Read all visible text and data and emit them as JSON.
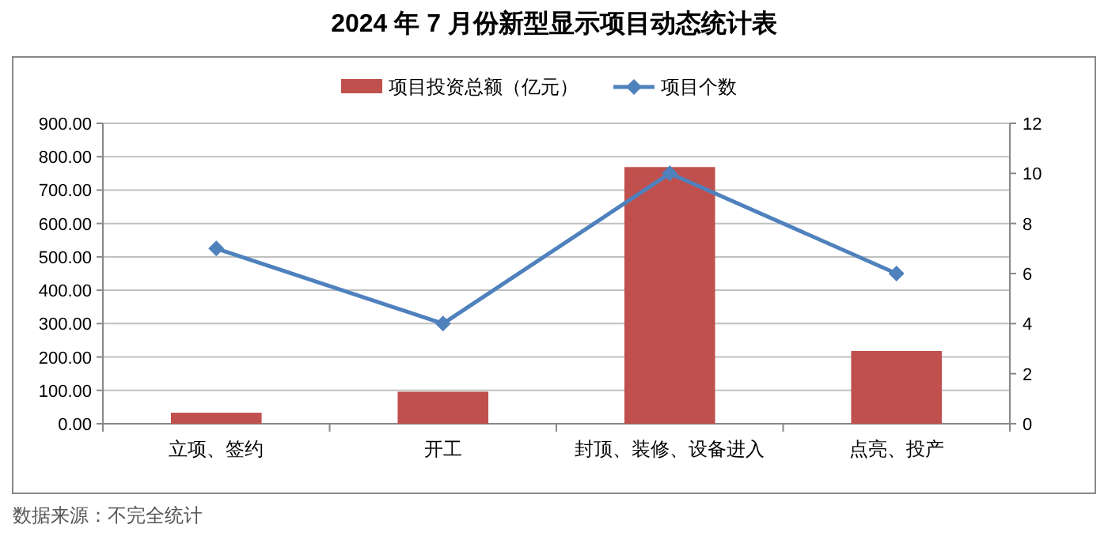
{
  "chart_data": {
    "type": "bar",
    "title": "2024 年 7 月份新型显示项目动态统计表",
    "categories": [
      "立项、签约",
      "开工",
      "封顶、装修、设备进入",
      "点亮、投产"
    ],
    "series": [
      {
        "name": "项目投资总额（亿元）",
        "color": "#c0504d",
        "values": [
          33,
          96,
          769,
          218
        ]
      },
      {
        "name": "项目个数",
        "type": "line",
        "axis": "y2",
        "color": "#4f81bd",
        "marker": "diamond",
        "values": [
          7,
          4,
          10,
          6
        ]
      }
    ],
    "ylim": [
      0,
      900
    ],
    "yticks": [
      {
        "value": 0,
        "label": "0.00"
      },
      {
        "value": 100,
        "label": "100.00"
      },
      {
        "value": 200,
        "label": "200.00"
      },
      {
        "value": 300,
        "label": "300.00"
      },
      {
        "value": 400,
        "label": "400.00"
      },
      {
        "value": 500,
        "label": "500.00"
      },
      {
        "value": 600,
        "label": "600.00"
      },
      {
        "value": 700,
        "label": "700.00"
      },
      {
        "value": 800,
        "label": "800.00"
      },
      {
        "value": 900,
        "label": "900.00"
      }
    ],
    "y2lim": [
      0,
      12
    ],
    "y2ticks": [
      0,
      2,
      4,
      6,
      8,
      10,
      12
    ],
    "grid": "y",
    "legend": "top",
    "annotations": [
      "数据来源：不完全统计"
    ]
  }
}
